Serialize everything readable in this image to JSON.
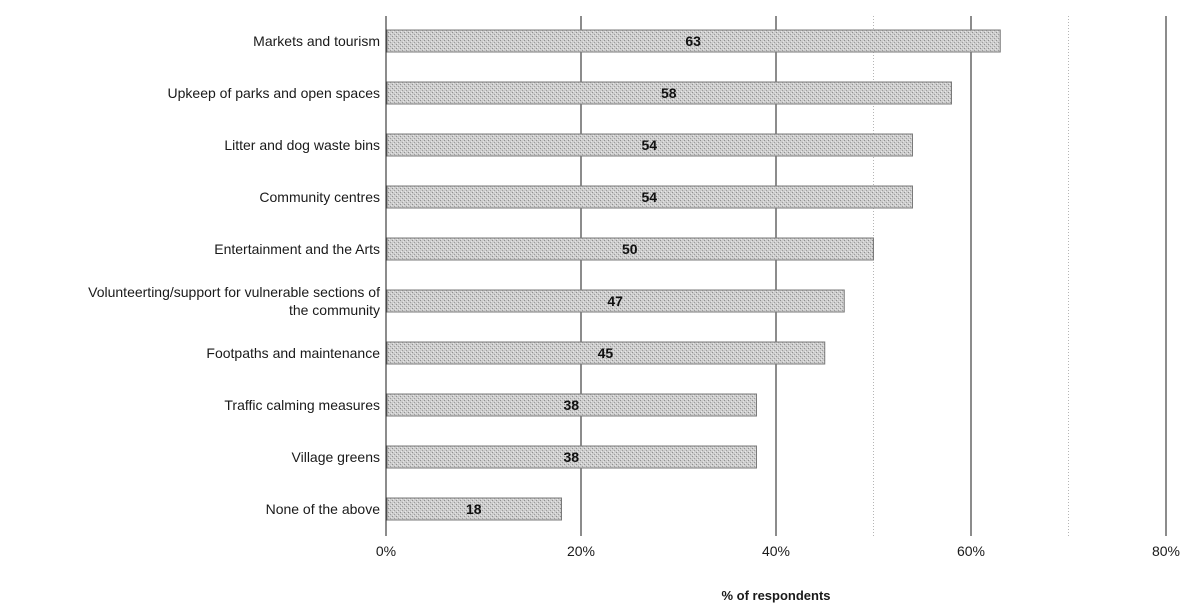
{
  "chart_data": {
    "type": "bar",
    "orientation": "horizontal",
    "categories": [
      "Markets and tourism",
      "Upkeep of parks and open spaces",
      "Litter and dog waste bins",
      "Community centres",
      "Entertainment and the Arts",
      "Volunteerting/support for vulnerable sections of the community",
      "Footpaths and maintenance",
      "Traffic calming measures",
      "Village greens",
      "None of the above"
    ],
    "category_lines": [
      [
        "Markets and tourism"
      ],
      [
        "Upkeep of parks and open spaces"
      ],
      [
        "Litter and dog waste bins"
      ],
      [
        "Community centres"
      ],
      [
        "Entertainment and the Arts"
      ],
      [
        "Volunteerting/support for vulnerable sections of",
        "the community"
      ],
      [
        "Footpaths and maintenance"
      ],
      [
        "Traffic calming measures"
      ],
      [
        "Village greens"
      ],
      [
        "None of the above"
      ]
    ],
    "values": [
      63,
      58,
      54,
      54,
      50,
      47,
      45,
      38,
      38,
      18
    ],
    "data_labels": [
      "63",
      "58",
      "54",
      "54",
      "50",
      "47",
      "45",
      "38",
      "38",
      "18"
    ],
    "xlabel": "% of respondents",
    "xlim": [
      0,
      80
    ],
    "x_ticks": [
      0,
      20,
      40,
      60,
      80
    ],
    "x_tick_labels": [
      "0%",
      "20%",
      "40%",
      "60%",
      "80%"
    ],
    "minor_gridlines": [
      50,
      70
    ],
    "grid": true,
    "legend": "none",
    "colors": {
      "bar_fill": "#c9c9c9",
      "bar_stroke": "#7a7a7a",
      "major_grid": "#1a1a1a",
      "minor_grid": "#b5b5b5",
      "text": "#1a1a1a"
    }
  }
}
